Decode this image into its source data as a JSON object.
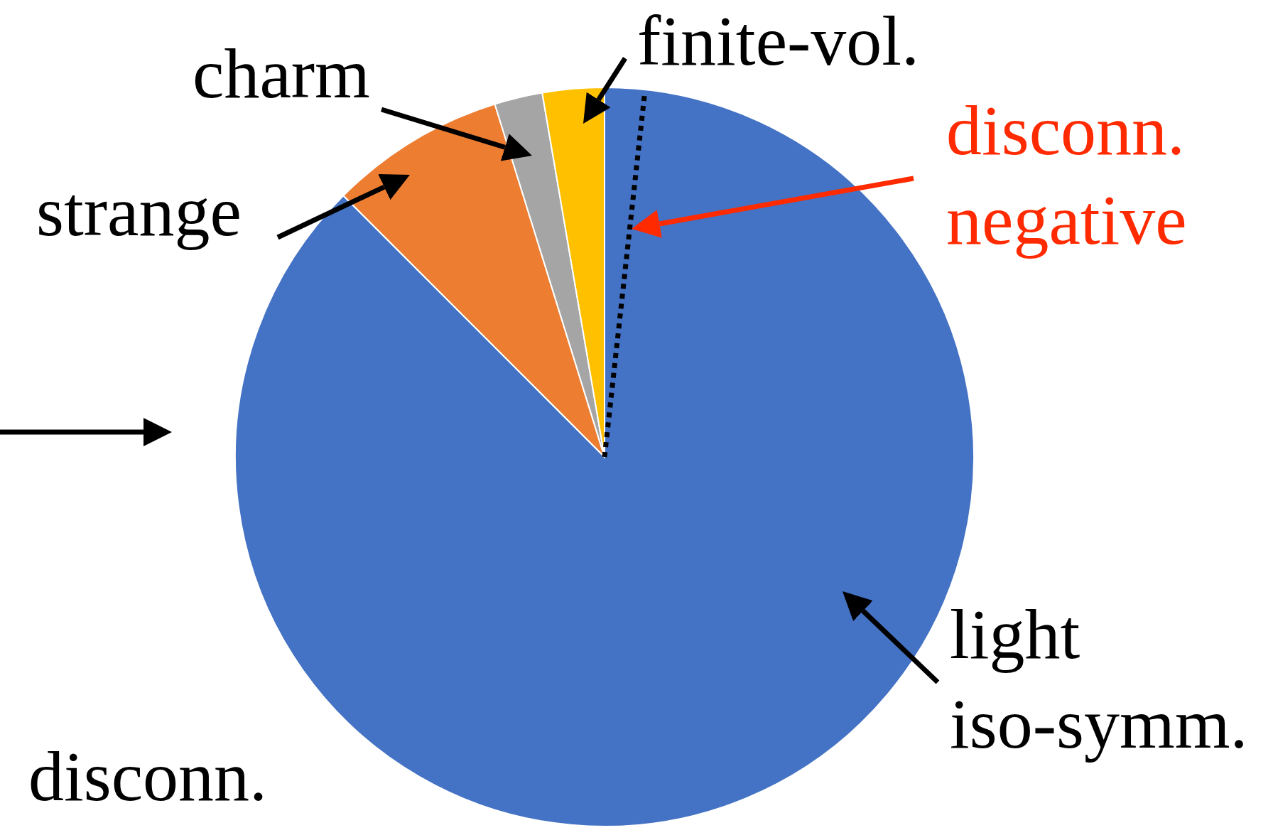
{
  "chart_data": {
    "type": "pie",
    "categories": [
      "light iso-symm.",
      "strange",
      "charm",
      "finite-vol."
    ],
    "values": [
      87.5,
      7.7,
      2.1,
      2.7
    ],
    "colors": [
      "#4472c4",
      "#ed7d31",
      "#a5a5a5",
      "#ffc000"
    ],
    "needle": "light iso-symm.",
    "annotations": [
      "disconn. negative",
      "disconn."
    ]
  }
}
